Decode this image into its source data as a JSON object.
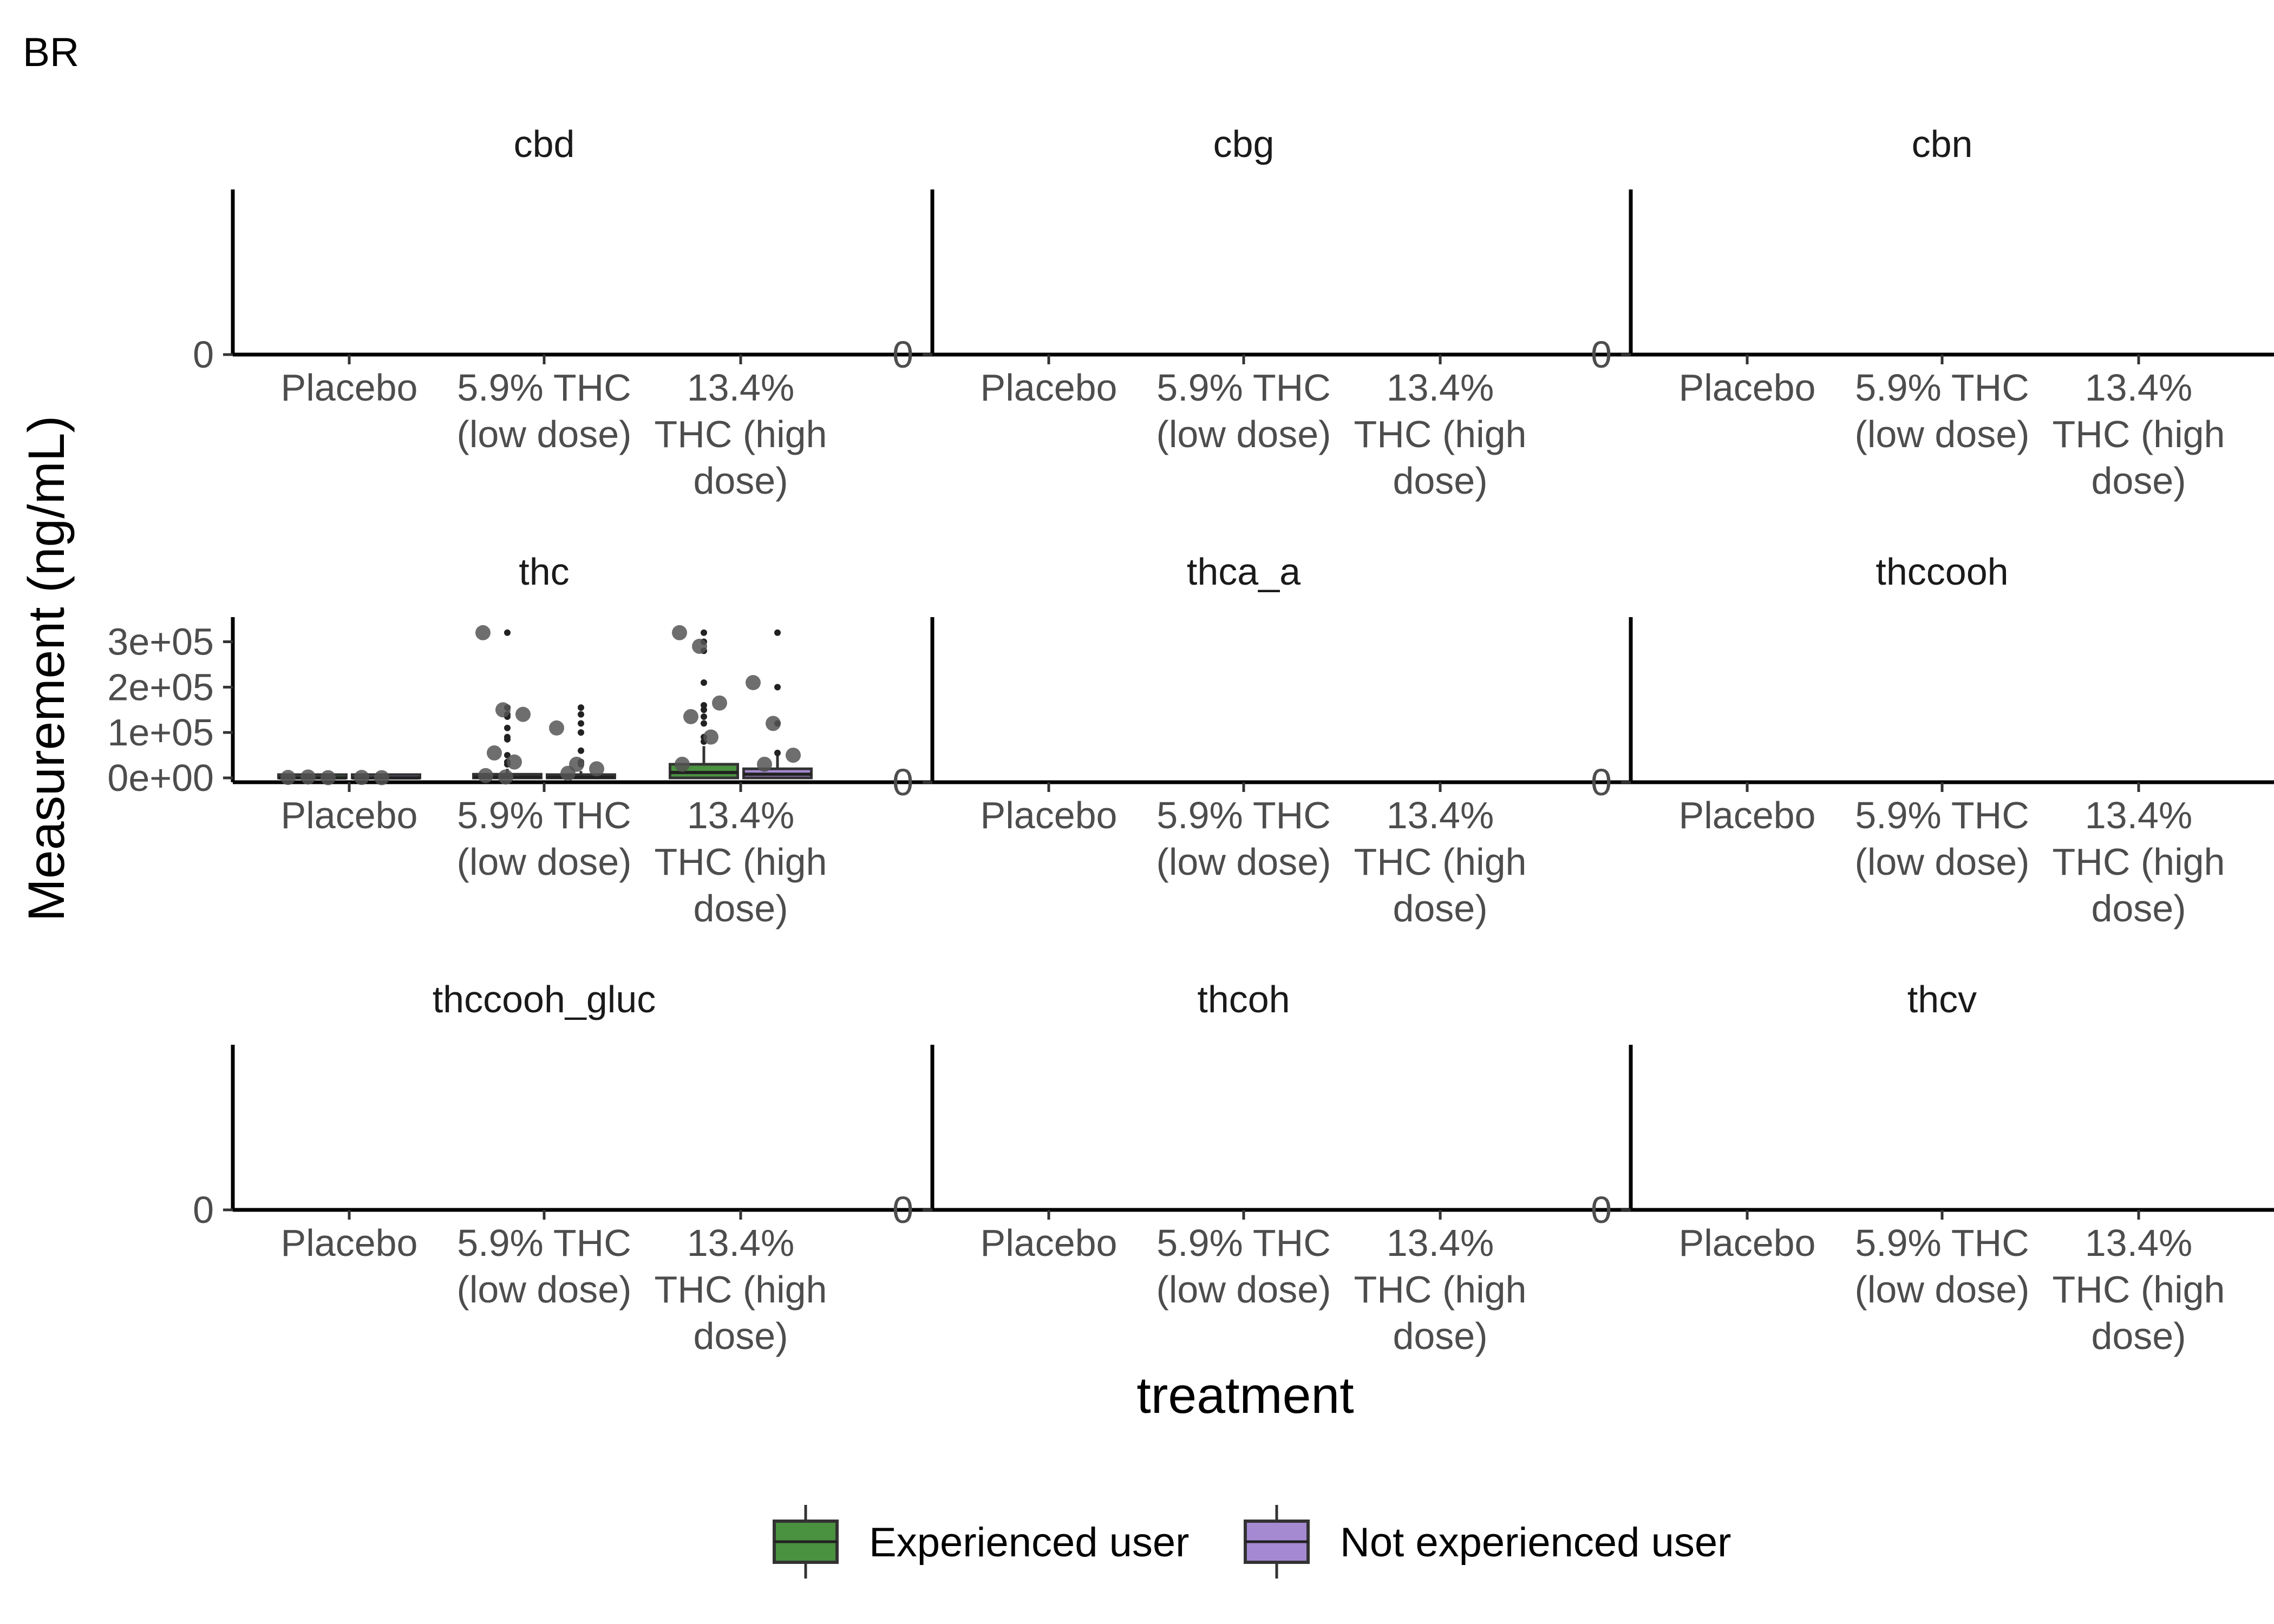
{
  "chart_data": {
    "type": "box",
    "title": "BR",
    "xlabel": "treatment",
    "ylabel": "Measurement (ng/mL)",
    "categories": [
      "Placebo",
      "5.9% THC (low dose)",
      "13.4% THC (high dose)"
    ],
    "category_lines": [
      [
        "Placebo"
      ],
      [
        "5.9% THC",
        "(low dose)"
      ],
      [
        "13.4%",
        "THC (high",
        "dose)"
      ]
    ],
    "legend": {
      "position": "bottom",
      "entries": [
        {
          "name": "Experienced user",
          "color": "#4a9140"
        },
        {
          "name": "Not experienced user",
          "color": "#a58ad2"
        }
      ]
    },
    "panels": [
      {
        "name": "cbd",
        "y_ticks": [
          "0"
        ],
        "series": []
      },
      {
        "name": "cbg",
        "y_ticks": [
          "0"
        ],
        "series": []
      },
      {
        "name": "cbn",
        "y_ticks": [
          "0"
        ],
        "series": []
      },
      {
        "name": "thc",
        "y_ticks": [
          "0e+00",
          "1e+05",
          "2e+05",
          "3e+05"
        ],
        "ylim": [
          0,
          340000
        ],
        "series": [
          {
            "name": "Experienced user",
            "boxes": [
              {
                "category": "Placebo",
                "q1": 0,
                "median": 0,
                "q3": 1500,
                "whisker_high": 4000
              },
              {
                "category": "5.9% THC (low dose)",
                "q1": 0,
                "median": 1500,
                "q3": 8000,
                "whisker_high": 20000
              },
              {
                "category": "13.4% THC (high dose)",
                "q1": 0,
                "median": 12000,
                "q3": 30000,
                "whisker_high": 70000
              }
            ],
            "outliers": [
              {
                "category": "5.9% THC (low dose)",
                "values": [
                  320000,
                  155000,
                  140000,
                  135000,
                  110000,
                  90000,
                  85000,
                  50000,
                  35000,
                  30000
                ]
              },
              {
                "category": "13.4% THC (high dose)",
                "values": [
                  320000,
                  300000,
                  280000,
                  210000,
                  160000,
                  150000,
                  135000,
                  120000,
                  90000,
                  80000
                ]
              }
            ],
            "points": [
              {
                "category": "Placebo",
                "values": [
                  1000,
                  2000,
                  500
                ]
              },
              {
                "category": "5.9% THC (low dose)",
                "values": [
                  320000,
                  150000,
                  140000,
                  55000,
                  35000,
                  5000,
                  2000
                ]
              },
              {
                "category": "13.4% THC (high dose)",
                "values": [
                  320000,
                  290000,
                  165000,
                  135000,
                  90000,
                  30000
                ]
              }
            ]
          },
          {
            "name": "Not experienced user",
            "boxes": [
              {
                "category": "Placebo",
                "q1": 0,
                "median": 0,
                "q3": 1000,
                "whisker_high": 3000
              },
              {
                "category": "5.9% THC (low dose)",
                "q1": 0,
                "median": 1000,
                "q3": 7000,
                "whisker_high": 15000
              },
              {
                "category": "13.4% THC (high dose)",
                "q1": 0,
                "median": 8000,
                "q3": 20000,
                "whisker_high": 50000
              }
            ],
            "outliers": [
              {
                "category": "5.9% THC (low dose)",
                "values": [
                  155000,
                  140000,
                  120000,
                  100000,
                  60000,
                  35000,
                  30000
                ]
              },
              {
                "category": "13.4% THC (high dose)",
                "values": [
                  320000,
                  200000,
                  120000,
                  55000
                ]
              }
            ],
            "points": [
              {
                "category": "Placebo",
                "values": [
                  1000,
                  500
                ]
              },
              {
                "category": "5.9% THC (low dose)",
                "values": [
                  110000,
                  30000,
                  20000,
                  10000
                ]
              },
              {
                "category": "13.4% THC (high dose)",
                "values": [
                  210000,
                  120000,
                  50000,
                  30000
                ]
              }
            ]
          }
        ]
      },
      {
        "name": "thca_a",
        "y_ticks": [
          "0"
        ],
        "series": []
      },
      {
        "name": "thccooh",
        "y_ticks": [
          "0"
        ],
        "series": []
      },
      {
        "name": "thccooh_gluc",
        "y_ticks": [
          "0"
        ],
        "series": []
      },
      {
        "name": "thcoh",
        "y_ticks": [
          "0"
        ],
        "series": []
      },
      {
        "name": "thcv",
        "y_ticks": [
          "0"
        ],
        "series": []
      }
    ]
  }
}
